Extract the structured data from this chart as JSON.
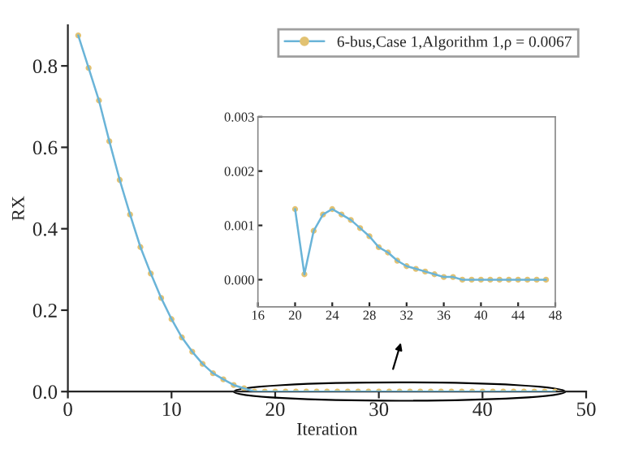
{
  "chart_data": [
    {
      "type": "line",
      "xlabel": "Iteration",
      "ylabel": "RX",
      "xlim": [
        0,
        50
      ],
      "xticks": [
        0,
        10,
        20,
        30,
        40,
        50
      ],
      "ylim": [
        0,
        0.9
      ],
      "yticks": [
        {
          "value": 0,
          "label": "0.0"
        },
        {
          "value": 0.2,
          "label": "0.2"
        },
        {
          "value": 0.4,
          "label": "0.4"
        },
        {
          "value": 0.6,
          "label": "0.6"
        },
        {
          "value": 0.8,
          "label": "0.8"
        }
      ],
      "marker": "circle",
      "line_style": "solid",
      "legend": "top right",
      "grid": false,
      "x": [
        1,
        2,
        3,
        4,
        5,
        6,
        7,
        8,
        9,
        10,
        11,
        12,
        13,
        14,
        15,
        16,
        17,
        18,
        19,
        20,
        21,
        22,
        23,
        24,
        25,
        26,
        27,
        28,
        29,
        30,
        31,
        32,
        33,
        34,
        35,
        36,
        37,
        38,
        39,
        40,
        41,
        42,
        43,
        44,
        45,
        46,
        47
      ],
      "series": [
        {
          "name": "6-bus,Case 1,Algorithm 1,ρ = 0.0067",
          "color": "#e2c272",
          "values": [
            0.875,
            0.795,
            0.715,
            0.615,
            0.52,
            0.435,
            0.355,
            0.29,
            0.23,
            0.178,
            0.133,
            0.098,
            0.068,
            0.045,
            0.03,
            0.016,
            0.008,
            0,
            0,
            0,
            0,
            0,
            0,
            0,
            0,
            0,
            0,
            0,
            0,
            0,
            0,
            0,
            0,
            0,
            0,
            0,
            0,
            0,
            0,
            0,
            0,
            0,
            0,
            0,
            0,
            0,
            0
          ]
        }
      ]
    },
    {
      "type": "line",
      "xlim": [
        16,
        48
      ],
      "xticks": [
        16,
        20,
        24,
        28,
        32,
        36,
        40,
        44,
        48
      ],
      "ylim": [
        -0.0005,
        0.003
      ],
      "yticks": [
        {
          "value": 0,
          "label": "0.000"
        },
        {
          "value": 0.001,
          "label": "0.001"
        },
        {
          "value": 0.002,
          "label": "0.002"
        },
        {
          "value": 0.003,
          "label": "0.003"
        }
      ],
      "marker": "circle",
      "line_style": "solid",
      "grid": false,
      "x": [
        20,
        21,
        22,
        23,
        24,
        25,
        26,
        27,
        28,
        29,
        30,
        31,
        32,
        33,
        34,
        35,
        36,
        37,
        38,
        39,
        40,
        41,
        42,
        43,
        44,
        45,
        46,
        47
      ],
      "series": [
        {
          "color": "#e2c272",
          "values": [
            0.0013,
            0.0001,
            0.0009,
            0.0012,
            0.0013,
            0.0012,
            0.0011,
            0.00095,
            0.0008,
            0.0006,
            0.0005,
            0.00035,
            0.00025,
            0.0002,
            0.00015,
            0.0001,
            5e-05,
            5e-05,
            0,
            0,
            0,
            0,
            0,
            0,
            0,
            0,
            0,
            0
          ]
        }
      ]
    }
  ]
}
